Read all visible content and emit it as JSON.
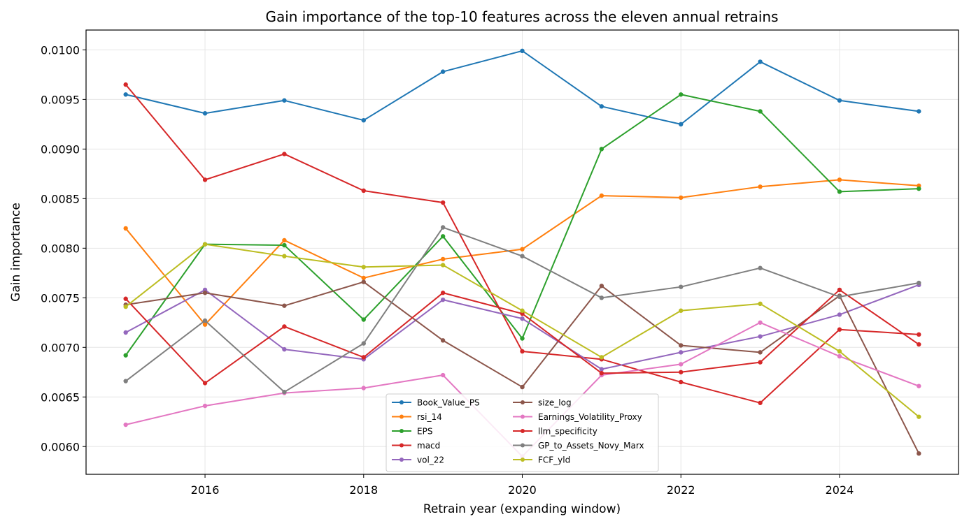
{
  "chart_data": {
    "type": "line",
    "title": "Gain importance of the top-10 features across the eleven annual retrains",
    "xlabel": "Retrain year (expanding window)",
    "ylabel": "Gain importance",
    "xlim": [
      2014.5,
      2025.5
    ],
    "ylim": [
      0.00572,
      0.0102
    ],
    "xticks": [
      2016,
      2018,
      2020,
      2022,
      2024
    ],
    "yticks": [
      0.006,
      0.0065,
      0.007,
      0.0075,
      0.008,
      0.0085,
      0.009,
      0.0095,
      0.01
    ],
    "ytick_labels": [
      "0.0060",
      "0.0065",
      "0.0070",
      "0.0075",
      "0.0080",
      "0.0085",
      "0.0090",
      "0.0095",
      "0.0100"
    ],
    "grid": true,
    "legend_position": "lower-center",
    "x": [
      2015,
      2016,
      2017,
      2018,
      2019,
      2020,
      2021,
      2022,
      2023,
      2024,
      2025
    ],
    "series": [
      {
        "name": "Book_Value_PS",
        "color": "#1f77b4",
        "values": [
          0.00955,
          0.00936,
          0.00949,
          0.00929,
          0.00978,
          0.00999,
          0.00943,
          0.00925,
          0.00988,
          0.00949,
          0.00938
        ]
      },
      {
        "name": "rsi_14",
        "color": "#ff7f0e",
        "values": [
          0.0082,
          0.00723,
          0.00808,
          0.0077,
          0.00789,
          0.00799,
          0.00853,
          0.00851,
          0.00862,
          0.00869,
          0.00863
        ]
      },
      {
        "name": "EPS",
        "color": "#2ca02c",
        "values": [
          0.00692,
          0.00804,
          0.00803,
          0.00728,
          0.00812,
          0.00709,
          0.009,
          0.00955,
          0.00938,
          0.00857,
          0.0086
        ]
      },
      {
        "name": "macd",
        "color": "#d62728",
        "values": [
          0.00965,
          0.00869,
          0.00895,
          0.00858,
          0.00846,
          0.00696,
          0.00688,
          0.00665,
          0.00644,
          0.00718,
          0.00713
        ]
      },
      {
        "name": "vol_22",
        "color": "#9467bd",
        "values": [
          0.00715,
          0.00758,
          0.00698,
          0.00688,
          0.00748,
          0.00729,
          0.00678,
          0.00695,
          0.00711,
          0.00733,
          0.00763
        ]
      },
      {
        "name": "size_log",
        "color": "#8c564b",
        "values": [
          0.00743,
          0.00755,
          0.00742,
          0.00766,
          0.00707,
          0.0066,
          0.00762,
          0.00702,
          0.00695,
          0.00752,
          0.00593
        ]
      },
      {
        "name": "Earnings_Volatility_Proxy",
        "color": "#e377c2",
        "values": [
          0.00622,
          0.00641,
          0.00654,
          0.00659,
          0.00672,
          0.0059,
          0.00672,
          0.00683,
          0.00725,
          0.00691,
          0.00661
        ]
      },
      {
        "name": "llm_specificity",
        "color": "#d62728",
        "values": [
          0.00749,
          0.00664,
          0.00721,
          0.0069,
          0.00755,
          0.00734,
          0.00674,
          0.00675,
          0.00685,
          0.00758,
          0.00703
        ]
      },
      {
        "name": "GP_to_Assets_Novy_Marx",
        "color": "#7f7f7f",
        "values": [
          0.00666,
          0.00727,
          0.00655,
          0.00704,
          0.00821,
          0.00792,
          0.0075,
          0.00761,
          0.0078,
          0.00751,
          0.00765
        ]
      },
      {
        "name": "FCF_yld",
        "color": "#bcbd22",
        "values": [
          0.00741,
          0.00804,
          0.00792,
          0.00781,
          0.00783,
          0.00737,
          0.0069,
          0.00737,
          0.00744,
          0.00696,
          0.0063
        ]
      }
    ]
  }
}
